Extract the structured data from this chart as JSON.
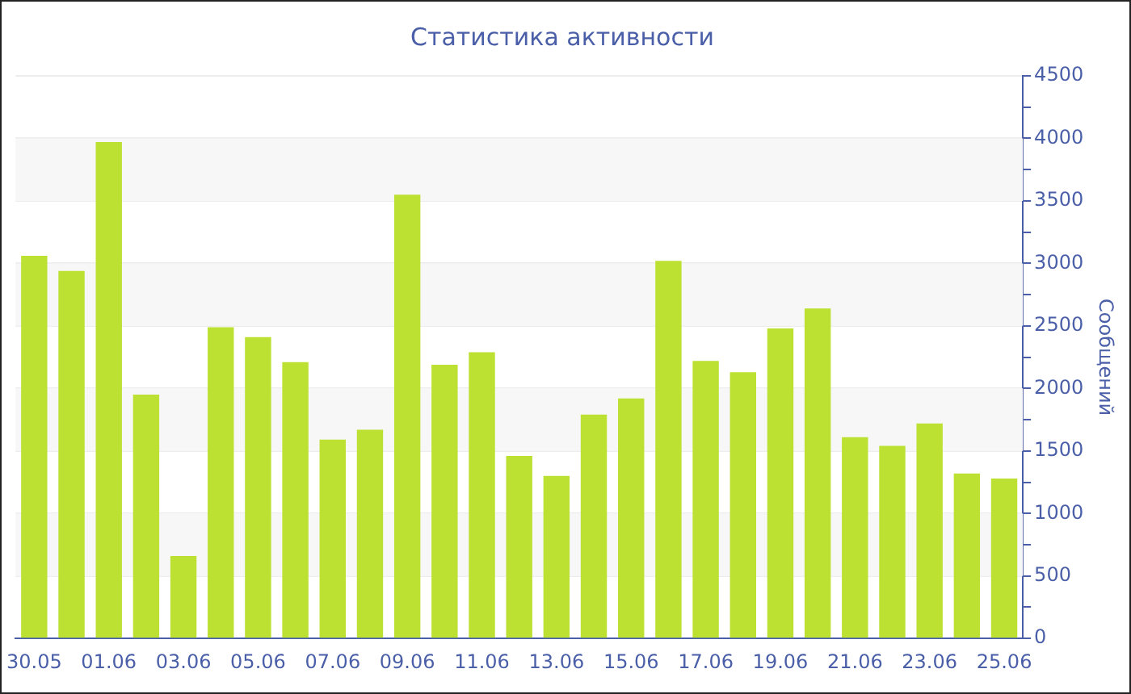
{
  "chart_data": {
    "type": "bar",
    "title": "Статистика активности",
    "ylabel": "Сообщений",
    "categories": [
      "30.05",
      null,
      "01.06",
      null,
      "03.06",
      null,
      "05.06",
      null,
      "07.06",
      null,
      "09.06",
      null,
      "11.06",
      null,
      "13.06",
      null,
      "15.06",
      null,
      "17.06",
      null,
      "19.06",
      null,
      "21.06",
      null,
      "23.06",
      null,
      "25.06"
    ],
    "series": [
      {
        "color": "#bce132",
        "values": [
          3060,
          2940,
          3970,
          1950,
          660,
          2490,
          2410,
          2210,
          1590,
          1670,
          3550,
          2190,
          2290,
          1460,
          1300,
          1790,
          1920,
          3020,
          2220,
          2130,
          2480,
          2640,
          1610,
          1540,
          1720,
          1320,
          1280
        ]
      }
    ],
    "ylim": [
      0,
      4500
    ],
    "yticks": [
      0,
      {
        "value": 250,
        "label": null
      },
      500,
      {
        "value": 750,
        "label": null
      },
      1000,
      {
        "value": 1250,
        "label": null
      },
      1500,
      {
        "value": 1750,
        "label": null
      },
      2000,
      {
        "value": 2250,
        "label": null
      },
      2500,
      {
        "value": 2750,
        "label": null
      },
      3000,
      {
        "value": 3250,
        "label": null
      },
      3500,
      {
        "value": 3750,
        "label": null
      },
      4000,
      {
        "value": 4250,
        "label": null
      },
      4500
    ],
    "grid": "y"
  }
}
